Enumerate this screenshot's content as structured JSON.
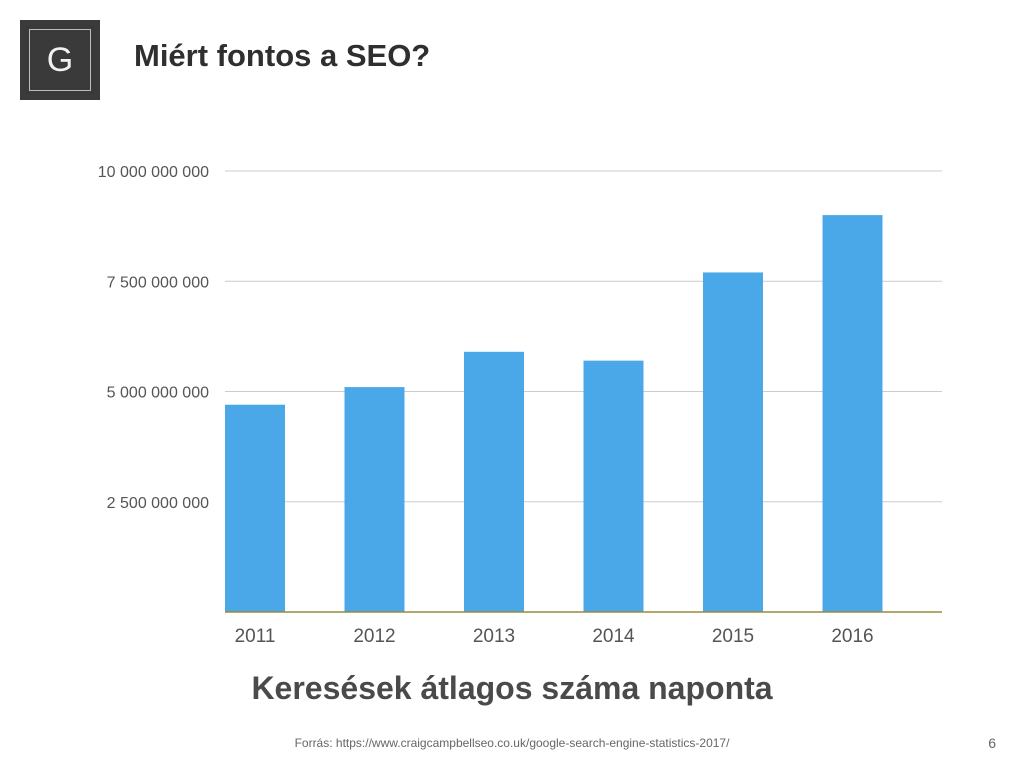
{
  "slide": {
    "logo_letter": "G",
    "title": "Miért fontos a SEO?",
    "source": "Forrás: https://www.craigcampbellseo.co.uk/google-search-engine-statistics-2017/",
    "page_number": "6"
  },
  "colors": {
    "bar": "#4BA8E8",
    "grid": "#cccccc",
    "axis": "#9c8a3a",
    "logo_bg": "#3a3a3a"
  },
  "chart_data": {
    "type": "bar",
    "title": "Keresések átlagos száma naponta",
    "xlabel": "",
    "ylabel": "",
    "categories": [
      "2011",
      "2012",
      "2013",
      "2014",
      "2015",
      "2016"
    ],
    "values": [
      4700000000,
      5100000000,
      5900000000,
      5700000000,
      7700000000,
      9000000000
    ],
    "ylim": [
      0,
      10000000000
    ],
    "yticks": [
      {
        "value": 2500000000,
        "label": "2 500 000 000"
      },
      {
        "value": 5000000000,
        "label": "5 000 000 000"
      },
      {
        "value": 7500000000,
        "label": "7 500 000 000"
      },
      {
        "value": 10000000000,
        "label": "10 000 000 000"
      }
    ],
    "grid": true,
    "legend": "none"
  }
}
